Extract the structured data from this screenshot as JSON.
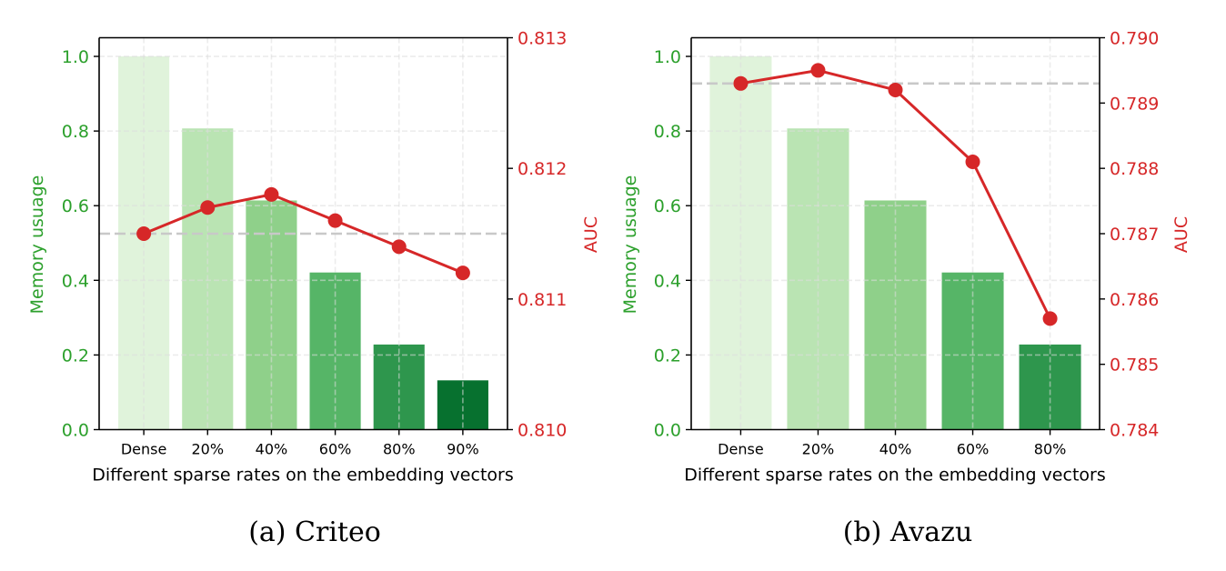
{
  "chart_data": [
    {
      "id": "criteo",
      "type": "bar+line",
      "caption": "(a)  Criteo",
      "xlabel": "Different sparse rates on the embedding vectors",
      "categories": [
        "Dense",
        "20%",
        "40%",
        "60%",
        "80%",
        "90%"
      ],
      "left_axis": {
        "label": "Memory usuage",
        "color": "#2ca02c",
        "ylim": [
          0,
          1.05
        ],
        "ticks": [
          0.0,
          0.2,
          0.4,
          0.6,
          0.8,
          1.0
        ],
        "tick_labels": [
          "0.0",
          "0.2",
          "0.4",
          "0.6",
          "0.8",
          "1.0"
        ]
      },
      "right_axis": {
        "label": "AUC",
        "color": "#d62728",
        "ylim": [
          0.81,
          0.813
        ],
        "ticks": [
          0.81,
          0.811,
          0.812,
          0.813
        ],
        "tick_labels": [
          "0.810",
          "0.811",
          "0.812",
          "0.813"
        ]
      },
      "series": [
        {
          "name": "Memory usuage",
          "type": "bar",
          "axis": "left",
          "values": [
            1.0,
            0.807,
            0.614,
            0.421,
            0.228,
            0.132
          ],
          "colors": [
            "#e0f3db",
            "#bae4b3",
            "#8fd08a",
            "#56b567",
            "#2e964d",
            "#07712f"
          ]
        },
        {
          "name": "AUC",
          "type": "line",
          "axis": "right",
          "values": [
            0.8115,
            0.8117,
            0.8118,
            0.8116,
            0.8114,
            0.8112
          ],
          "color": "#d62728"
        }
      ],
      "reference_line": {
        "axis": "right",
        "value": 0.8115,
        "style": "dashed",
        "color": "#c8c8c8"
      },
      "grid": true
    },
    {
      "id": "avazu",
      "type": "bar+line",
      "caption": "(b)  Avazu",
      "xlabel": "Different sparse rates on the embedding vectors",
      "categories": [
        "Dense",
        "20%",
        "40%",
        "60%",
        "80%"
      ],
      "left_axis": {
        "label": "Memory usuage",
        "color": "#2ca02c",
        "ylim": [
          0,
          1.05
        ],
        "ticks": [
          0.0,
          0.2,
          0.4,
          0.6,
          0.8,
          1.0
        ],
        "tick_labels": [
          "0.0",
          "0.2",
          "0.4",
          "0.6",
          "0.8",
          "1.0"
        ]
      },
      "right_axis": {
        "label": "AUC",
        "color": "#d62728",
        "ylim": [
          0.784,
          0.79
        ],
        "ticks": [
          0.784,
          0.785,
          0.786,
          0.787,
          0.788,
          0.789,
          0.79
        ],
        "tick_labels": [
          "0.784",
          "0.785",
          "0.786",
          "0.787",
          "0.788",
          "0.789",
          "0.790"
        ]
      },
      "series": [
        {
          "name": "Memory usuage",
          "type": "bar",
          "axis": "left",
          "values": [
            1.0,
            0.807,
            0.614,
            0.421,
            0.228
          ],
          "colors": [
            "#e0f3db",
            "#bae4b3",
            "#8fd08a",
            "#56b567",
            "#2e964d"
          ]
        },
        {
          "name": "AUC",
          "type": "line",
          "axis": "right",
          "values": [
            0.7893,
            0.7895,
            0.7892,
            0.7881,
            0.7857
          ],
          "color": "#d62728"
        }
      ],
      "reference_line": {
        "axis": "right",
        "value": 0.7893,
        "style": "dashed",
        "color": "#c8c8c8"
      },
      "grid": true
    }
  ]
}
